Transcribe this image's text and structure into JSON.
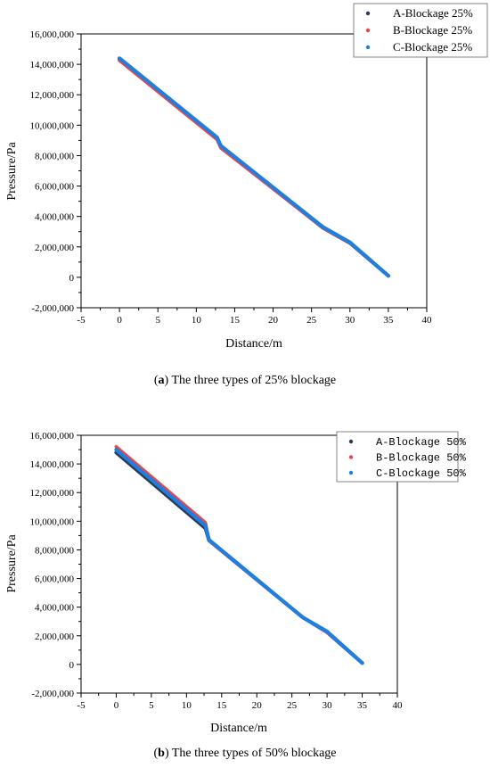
{
  "colors": {
    "A": "#2b3a55",
    "B": "#e8474a",
    "C": "#1f7fe0"
  },
  "captions": [
    {
      "label": "a",
      "text": " The three types of 25% blockage"
    },
    {
      "label": "b",
      "text": " The three types of 50% blockage"
    }
  ],
  "chart_data": [
    {
      "type": "line",
      "xlabel": "Distance/m",
      "ylabel": "Pressure/Pa",
      "xlim": [
        -5,
        40
      ],
      "ylim": [
        -2000000,
        16000000
      ],
      "xticks": [
        "-5",
        "0",
        "5",
        "10",
        "15",
        "20",
        "25",
        "30",
        "35",
        "40"
      ],
      "yticks": [
        "-2,000,000",
        "0",
        "2,000,000",
        "4,000,000",
        "6,000,000",
        "8,000,000",
        "10,000,000",
        "12,000,000",
        "14,000,000",
        "16,000,000"
      ],
      "legend_position": "top-right",
      "series": [
        {
          "name": "A-Blockage 25%",
          "key": "A",
          "x": [
            0,
            12.7,
            13.2,
            26.5,
            30,
            35
          ],
          "y": [
            14300000,
            9150000,
            8550000,
            3250000,
            2250000,
            100000
          ]
        },
        {
          "name": "B-Blockage 25%",
          "key": "B",
          "x": [
            0,
            12.7,
            13.2,
            26.5,
            30,
            35
          ],
          "y": [
            14250000,
            9050000,
            8500000,
            3250000,
            2250000,
            100000
          ]
        },
        {
          "name": "C-Blockage 25%",
          "key": "C",
          "x": [
            0,
            12.7,
            13.2,
            26.5,
            30,
            35
          ],
          "y": [
            14400000,
            9200000,
            8650000,
            3300000,
            2300000,
            100000
          ]
        }
      ]
    },
    {
      "type": "line",
      "xlabel": "Distance/m",
      "ylabel": "Pressure/Pa",
      "xlim": [
        -5,
        40
      ],
      "ylim": [
        -2000000,
        16000000
      ],
      "xticks": [
        "-5",
        "0",
        "5",
        "10",
        "15",
        "20",
        "25",
        "30",
        "35",
        "40"
      ],
      "yticks": [
        "-2,000,000",
        "0",
        "2,000,000",
        "4,000,000",
        "6,000,000",
        "8,000,000",
        "10,000,000",
        "12,000,000",
        "14,000,000",
        "16,000,000"
      ],
      "legend_position": "top-right",
      "series": [
        {
          "name": "A-Blockage 50%",
          "key": "A",
          "x": [
            0,
            12.7,
            13.2,
            26.5,
            30,
            35
          ],
          "y": [
            14800000,
            9500000,
            8650000,
            3300000,
            2250000,
            100000
          ]
        },
        {
          "name": "B-Blockage 50%",
          "key": "B",
          "x": [
            0,
            12.7,
            13.2,
            26.5,
            30,
            35
          ],
          "y": [
            15200000,
            9900000,
            8650000,
            3300000,
            2250000,
            100000
          ]
        },
        {
          "name": "C-Blockage 50%",
          "key": "C",
          "x": [
            0,
            12.7,
            13.2,
            26.5,
            30,
            35
          ],
          "y": [
            15000000,
            9700000,
            8700000,
            3300000,
            2300000,
            100000
          ]
        }
      ]
    }
  ]
}
